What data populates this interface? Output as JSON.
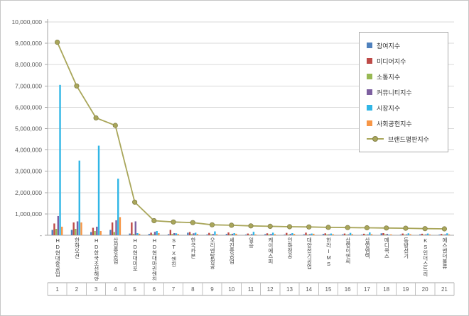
{
  "chart_data": {
    "type": "bar",
    "subtype": "grouped-bars-with-line-overlay",
    "title": "",
    "xlabel": "",
    "ylabel": "",
    "ylim": [
      0,
      10000000
    ],
    "grid": true,
    "legend_position": "top-right",
    "y_ticks": [
      "-",
      "1,000,000",
      "2,000,000",
      "3,000,000",
      "4,000,000",
      "5,000,000",
      "6,000,000",
      "7,000,000",
      "8,000,000",
      "9,000,000",
      "10,000,000"
    ],
    "categories": [
      "HD현대중공업",
      "한화오션",
      "HD한국조선해양",
      "삼성중공업",
      "HD현대미포",
      "HD현대마린엔진",
      "STX엔진",
      "한국카본",
      "오리엔탈정공",
      "세진중공업",
      "일승",
      "케이에스피",
      "인화정공",
      "대양전기공업",
      "한라IMS",
      "삼영이엔씨",
      "삼영엠텍",
      "메디콕스",
      "동방선기",
      "KS인더스트리",
      "에스앤더블류"
    ],
    "category_numbers": [
      "1",
      "2",
      "3",
      "4",
      "5",
      "6",
      "7",
      "8",
      "9",
      "10",
      "11",
      "12",
      "13",
      "14",
      "15",
      "16",
      "17",
      "18",
      "19",
      "20",
      "21"
    ],
    "series": [
      {
        "name": "참여지수",
        "color": "#4f81bd",
        "values": [
          250000,
          250000,
          150000,
          250000,
          80000,
          60000,
          50000,
          120000,
          40000,
          60000,
          30000,
          50000,
          30000,
          40000,
          60000,
          40000,
          30000,
          90000,
          30000,
          40000,
          30000
        ]
      },
      {
        "name": "미디어지수",
        "color": "#be4b48",
        "values": [
          550000,
          600000,
          350000,
          600000,
          600000,
          120000,
          250000,
          150000,
          110000,
          130000,
          80000,
          90000,
          110000,
          120000,
          90000,
          80000,
          70000,
          100000,
          80000,
          70000,
          60000
        ]
      },
      {
        "name": "소통지수",
        "color": "#98b954",
        "values": [
          300000,
          300000,
          200000,
          150000,
          60000,
          50000,
          60000,
          50000,
          40000,
          50000,
          30000,
          40000,
          30000,
          30000,
          40000,
          30000,
          30000,
          40000,
          30000,
          30000,
          30000
        ]
      },
      {
        "name": "커뮤니티지수",
        "color": "#7d60a0",
        "values": [
          900000,
          650000,
          400000,
          700000,
          650000,
          160000,
          100000,
          90000,
          60000,
          70000,
          50000,
          60000,
          60000,
          50000,
          40000,
          40000,
          40000,
          60000,
          40000,
          40000,
          40000
        ]
      },
      {
        "name": "시장지수",
        "color": "#31b6e6",
        "values": [
          7050000,
          3500000,
          4200000,
          2650000,
          100000,
          200000,
          90000,
          120000,
          180000,
          100000,
          160000,
          120000,
          100000,
          80000,
          80000,
          110000,
          130000,
          30000,
          90000,
          80000,
          90000
        ]
      },
      {
        "name": "사회공헌지수",
        "color": "#f79646",
        "values": [
          400000,
          600000,
          200000,
          850000,
          70000,
          100000,
          60000,
          60000,
          50000,
          70000,
          40000,
          50000,
          60000,
          70000,
          50000,
          50000,
          50000,
          40000,
          50000,
          40000,
          40000
        ]
      }
    ],
    "line_series": {
      "name": "브랜드평판지수",
      "color": "#a9a65a",
      "marker_stroke": "#84814a",
      "values": [
        9050000,
        7000000,
        5500000,
        5150000,
        1550000,
        680000,
        620000,
        590000,
        490000,
        470000,
        440000,
        420000,
        400000,
        390000,
        370000,
        360000,
        350000,
        340000,
        330000,
        310000,
        300000
      ]
    }
  }
}
